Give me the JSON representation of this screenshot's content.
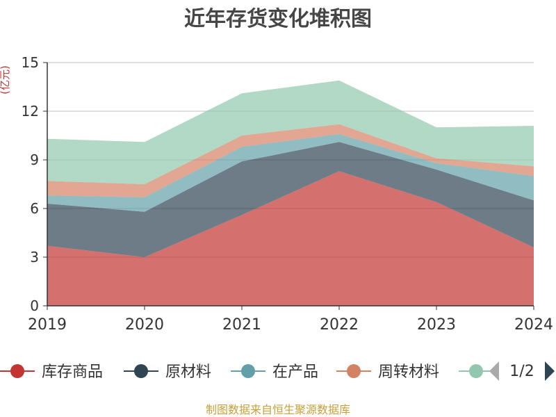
{
  "chart_data": {
    "type": "area",
    "stacked": true,
    "title": "近年存货变化堆积图",
    "ylabel": "(亿元)",
    "xlabel": "",
    "categories": [
      "2019",
      "2020",
      "2021",
      "2022",
      "2023",
      "2024"
    ],
    "ylim": [
      0,
      15
    ],
    "yticks": [
      "0",
      "3",
      "6",
      "9",
      "12",
      "15"
    ],
    "grid": true,
    "legend_position": "bottom",
    "series": [
      {
        "name": "库存商品",
        "color": "#c23531",
        "values": [
          3.7,
          3.0,
          5.6,
          8.3,
          6.4,
          3.6
        ]
      },
      {
        "name": "原材料",
        "color": "#2f4554",
        "values": [
          2.6,
          2.8,
          3.3,
          1.8,
          2.0,
          2.9
        ]
      },
      {
        "name": "在产品",
        "color": "#61a0a8",
        "values": [
          0.5,
          0.9,
          0.9,
          0.5,
          0.4,
          1.5
        ]
      },
      {
        "name": "周转材料",
        "color": "#d48265",
        "values": [
          0.9,
          0.8,
          0.7,
          0.6,
          0.3,
          0.6
        ]
      },
      {
        "name": "",
        "color": "#91c7ae",
        "values": [
          2.6,
          2.6,
          2.6,
          2.7,
          1.9,
          2.5
        ]
      }
    ]
  },
  "legend": {
    "items": [
      "库存商品",
      "原材料",
      "在产品",
      "周转材料"
    ],
    "page_indicator": "1/2"
  },
  "source": "制图数据来自恒生聚源数据库"
}
